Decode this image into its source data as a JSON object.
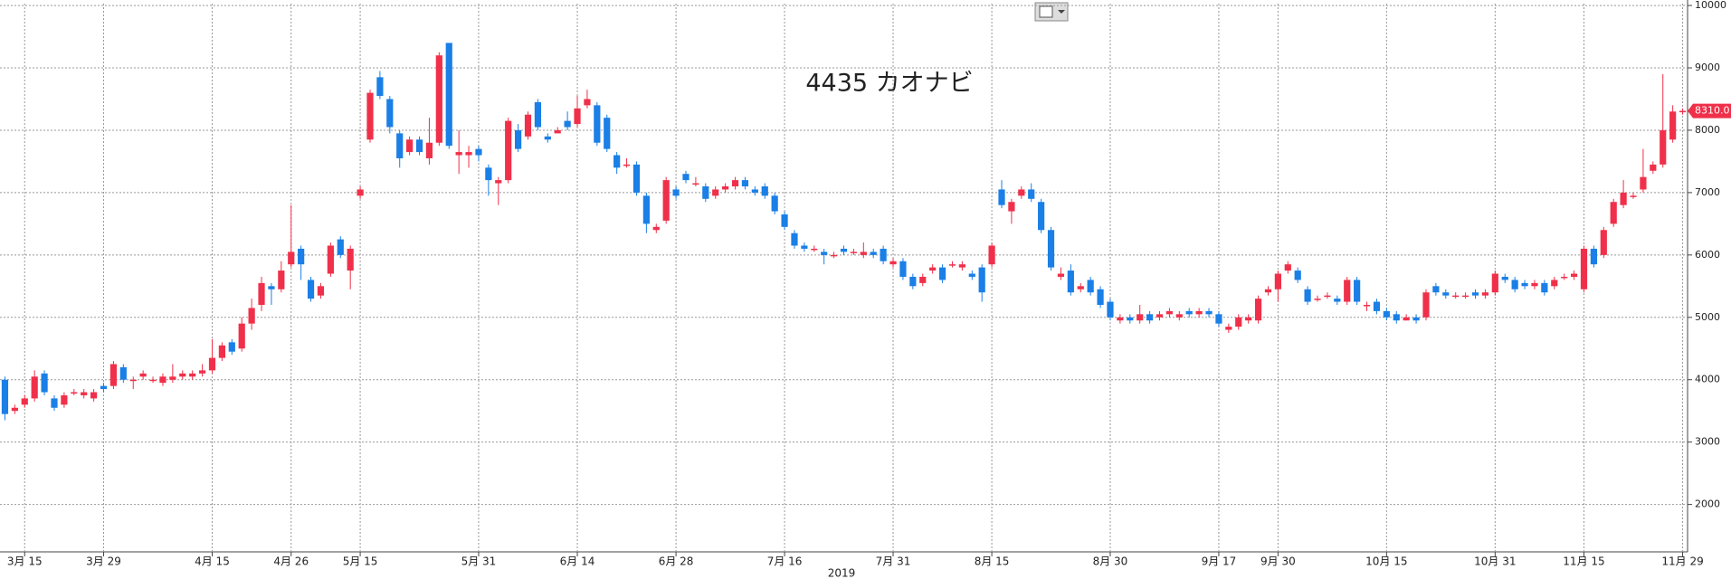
{
  "chart_data": {
    "type": "candlestick",
    "title": "4435 カオナビ",
    "x_label": "2019",
    "categories": [
      null,
      null,
      "3月 15",
      null,
      null,
      null,
      null,
      null,
      null,
      null,
      "3月 29",
      null,
      null,
      null,
      null,
      null,
      null,
      null,
      null,
      null,
      null,
      "4月 15",
      null,
      null,
      null,
      null,
      null,
      null,
      null,
      "4月 26",
      null,
      null,
      null,
      null,
      null,
      null,
      "5月 15",
      null,
      null,
      null,
      null,
      null,
      null,
      null,
      null,
      null,
      null,
      null,
      "5月 31",
      null,
      null,
      null,
      null,
      null,
      null,
      null,
      null,
      null,
      "6月 14",
      null,
      null,
      null,
      null,
      null,
      null,
      null,
      null,
      null,
      "6月 28",
      null,
      null,
      null,
      null,
      null,
      null,
      null,
      null,
      null,
      null,
      "7月 16",
      null,
      null,
      null,
      null,
      null,
      null,
      null,
      null,
      null,
      null,
      "7月 31",
      null,
      null,
      null,
      null,
      null,
      null,
      null,
      null,
      null,
      "8月 15",
      null,
      null,
      null,
      null,
      null,
      null,
      null,
      null,
      null,
      null,
      null,
      "8月 30",
      null,
      null,
      null,
      null,
      null,
      null,
      null,
      null,
      null,
      null,
      "9月 17",
      null,
      null,
      null,
      null,
      null,
      "9月 30",
      null,
      null,
      null,
      null,
      null,
      null,
      null,
      null,
      null,
      null,
      "10月 15",
      null,
      null,
      null,
      null,
      null,
      null,
      null,
      null,
      null,
      null,
      "10月 31",
      null,
      null,
      null,
      null,
      null,
      null,
      null,
      null,
      "11月 15",
      null,
      null,
      null,
      null,
      null,
      null,
      null,
      null,
      null,
      "11月 29"
    ],
    "open": [
      4000,
      3500,
      3600,
      3700,
      4100,
      3700,
      3600,
      3800,
      3750,
      3700,
      3900,
      3900,
      4200,
      4000,
      4050,
      4000,
      3950,
      4000,
      4050,
      4050,
      4100,
      4150,
      4350,
      4600,
      4500,
      4900,
      5200,
      5500,
      5450,
      5850,
      6100,
      5600,
      5350,
      5700,
      6250,
      5750,
      6950,
      7850,
      8850,
      8500,
      7950,
      7650,
      7850,
      7550,
      7800,
      9400,
      7600,
      7600,
      7700,
      7400,
      7150,
      7200,
      8000,
      7900,
      8450,
      7900,
      7950,
      8150,
      8100,
      8400,
      8400,
      8200,
      7600,
      7450,
      7450,
      6950,
      6400,
      6550,
      7050,
      7300,
      7150,
      7100,
      6950,
      7050,
      7100,
      7200,
      7050,
      7100,
      6950,
      6650,
      6350,
      6150,
      6100,
      6050,
      6000,
      6100,
      6050,
      6000,
      6050,
      6100,
      5850,
      5900,
      5650,
      5550,
      5750,
      5800,
      5850,
      5800,
      5700,
      5800,
      5850,
      7050,
      6700,
      6950,
      7050,
      6850,
      6400,
      5650,
      5750,
      5450,
      5600,
      5450,
      5250,
      4950,
      5000,
      4950,
      5050,
      5000,
      5050,
      5000,
      5100,
      5050,
      5100,
      5050,
      4800,
      4850,
      4950,
      4950,
      5400,
      5450,
      5750,
      5750,
      5450,
      5300,
      5350,
      5300,
      5250,
      5600,
      5200,
      5250,
      5100,
      5050,
      4950,
      5000,
      5000,
      5500,
      5400,
      5350,
      5350,
      5400,
      5350,
      5400,
      5650,
      5600,
      5550,
      5500,
      5550,
      5500,
      5650,
      5650,
      5450,
      6100,
      6000,
      6500,
      6800,
      6950,
      7050,
      7350,
      7450,
      7850,
      8300
    ],
    "high": [
      4050,
      3600,
      3750,
      4150,
      4150,
      3750,
      3800,
      3850,
      3850,
      3850,
      3950,
      4300,
      4250,
      4050,
      4150,
      4050,
      4100,
      4250,
      4150,
      4150,
      4250,
      4650,
      4600,
      4650,
      5000,
      5300,
      5650,
      5550,
      5900,
      6800,
      6150,
      5650,
      5550,
      6200,
      6300,
      6150,
      7100,
      8650,
      8950,
      8550,
      8000,
      7900,
      7900,
      8200,
      9250,
      9400,
      8000,
      7750,
      7750,
      7450,
      7250,
      8200,
      8100,
      8300,
      8500,
      7950,
      8050,
      8300,
      8550,
      8650,
      8450,
      8250,
      7650,
      7550,
      7500,
      7000,
      6500,
      7250,
      7100,
      7350,
      7250,
      7150,
      7100,
      7150,
      7250,
      7250,
      7100,
      7150,
      7000,
      6700,
      6400,
      6200,
      6150,
      6100,
      6050,
      6150,
      6100,
      6200,
      6100,
      6150,
      5950,
      5950,
      5700,
      5700,
      5850,
      5850,
      5900,
      5900,
      5750,
      5850,
      6200,
      7200,
      6900,
      7100,
      7150,
      6900,
      6450,
      5800,
      5850,
      5550,
      5650,
      5500,
      5300,
      5050,
      5050,
      5200,
      5100,
      5100,
      5150,
      5100,
      5150,
      5150,
      5150,
      5100,
      4900,
      5050,
      5050,
      5350,
      5500,
      5750,
      5900,
      5800,
      5500,
      5350,
      5400,
      5350,
      5650,
      5650,
      5250,
      5300,
      5150,
      5100,
      5050,
      5050,
      5450,
      5550,
      5450,
      5400,
      5400,
      5450,
      5450,
      5750,
      5700,
      5650,
      5600,
      5600,
      5600,
      5650,
      5700,
      5750,
      6150,
      6150,
      6450,
      6900,
      7200,
      7000,
      7700,
      7500,
      8900,
      8400,
      8350
    ],
    "low": [
      3350,
      3450,
      3550,
      3650,
      3750,
      3500,
      3550,
      3750,
      3700,
      3650,
      3800,
      3850,
      3950,
      3850,
      4000,
      3950,
      3900,
      3950,
      4000,
      4000,
      4050,
      4100,
      4300,
      4400,
      4450,
      4800,
      5100,
      5200,
      5400,
      5800,
      5600,
      5250,
      5300,
      5650,
      5950,
      5450,
      6900,
      7800,
      8500,
      7950,
      7400,
      7600,
      7600,
      7450,
      7750,
      7700,
      7300,
      7400,
      7500,
      6950,
      6800,
      7150,
      7650,
      7850,
      8000,
      7800,
      7950,
      8000,
      8050,
      8350,
      7750,
      7650,
      7300,
      7400,
      6950,
      6350,
      6350,
      6500,
      6900,
      7150,
      7100,
      6850,
      6900,
      7000,
      7050,
      7050,
      6950,
      6900,
      6650,
      6400,
      6100,
      6050,
      6050,
      5850,
      5950,
      6000,
      6000,
      5950,
      5950,
      5850,
      5800,
      5600,
      5450,
      5500,
      5700,
      5550,
      5800,
      5750,
      5600,
      5250,
      5800,
      6750,
      6500,
      6900,
      6850,
      6350,
      5750,
      5600,
      5350,
      5400,
      5350,
      5150,
      4950,
      4900,
      4900,
      4900,
      4900,
      4950,
      5000,
      4950,
      5000,
      5000,
      5000,
      4850,
      4750,
      4800,
      4900,
      4900,
      5350,
      5250,
      5700,
      5550,
      5200,
      5250,
      5300,
      5200,
      5200,
      5200,
      5100,
      5050,
      4950,
      4900,
      4950,
      4900,
      4950,
      5350,
      5300,
      5300,
      5300,
      5300,
      5300,
      5350,
      5550,
      5400,
      5450,
      5450,
      5350,
      5450,
      5600,
      5600,
      5400,
      5800,
      5950,
      6450,
      6750,
      6900,
      7000,
      7300,
      7400,
      7800,
      8250
    ],
    "close": [
      3450,
      3550,
      3700,
      4050,
      3800,
      3550,
      3750,
      3800,
      3800,
      3800,
      3850,
      4250,
      4000,
      4000,
      4100,
      4000,
      4050,
      4050,
      4100,
      4100,
      4150,
      4350,
      4550,
      4450,
      4900,
      5150,
      5550,
      5450,
      5750,
      6050,
      5850,
      5300,
      5500,
      6150,
      6000,
      6100,
      7050,
      8600,
      8550,
      8050,
      7550,
      7850,
      7650,
      7800,
      9200,
      7750,
      7650,
      7650,
      7600,
      7200,
      7200,
      8150,
      7700,
      8250,
      8050,
      7850,
      8000,
      8050,
      8350,
      8500,
      7800,
      7700,
      7400,
      7450,
      7000,
      6500,
      6450,
      7200,
      6950,
      7200,
      7150,
      6900,
      7050,
      7100,
      7200,
      7100,
      7000,
      6950,
      6700,
      6450,
      6150,
      6100,
      6100,
      6000,
      6000,
      6050,
      6050,
      6050,
      6000,
      5900,
      5900,
      5650,
      5500,
      5650,
      5800,
      5600,
      5850,
      5850,
      5650,
      5400,
      6150,
      6800,
      6850,
      7050,
      6900,
      6400,
      5800,
      5700,
      5400,
      5500,
      5400,
      5200,
      5000,
      5000,
      4950,
      5050,
      4950,
      5050,
      5100,
      5050,
      5050,
      5100,
      5050,
      4900,
      4850,
      5000,
      5000,
      5300,
      5450,
      5700,
      5850,
      5600,
      5250,
      5300,
      5350,
      5250,
      5600,
      5250,
      5200,
      5100,
      5000,
      4950,
      5000,
      4950,
      5400,
      5400,
      5350,
      5350,
      5350,
      5350,
      5400,
      5700,
      5600,
      5450,
      5500,
      5550,
      5400,
      5600,
      5650,
      5700,
      6100,
      5850,
      6400,
      6850,
      7000,
      6950,
      7250,
      7450,
      8000,
      8300,
      8310
    ],
    "up_color": "#f0304a",
    "down_color": "#1a7fe6",
    "last_price": {
      "value": 8310,
      "label": "8310.0"
    },
    "ylim": [
      1240,
      10030
    ],
    "yticks": [
      2000,
      3000,
      4000,
      5000,
      6000,
      7000,
      8000,
      9000,
      10000
    ],
    "grid": true
  }
}
